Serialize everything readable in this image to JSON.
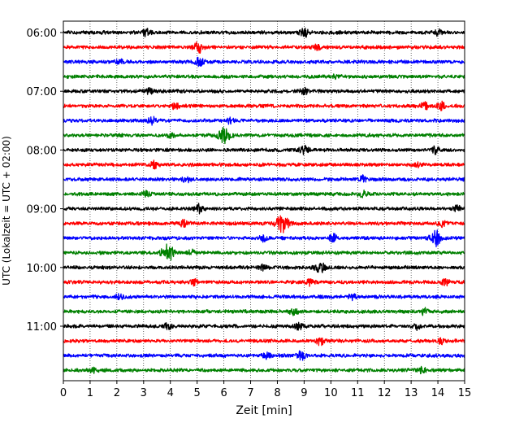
{
  "chart_data": {
    "type": "line",
    "subtype": "seismogram-helicorder",
    "xlabel": "Zeit  [min]",
    "ylabel": "UTC (Lokalzeit = UTC + 02:00)",
    "xlim": [
      0,
      15
    ],
    "x_ticks": [
      0,
      1,
      2,
      3,
      4,
      5,
      6,
      7,
      8,
      9,
      10,
      11,
      12,
      13,
      14,
      15
    ],
    "x_tick_labels": [
      "0",
      "1",
      "2",
      "3",
      "4",
      "5",
      "6",
      "7",
      "8",
      "9",
      "10",
      "11",
      "12",
      "13",
      "14",
      "15"
    ],
    "y_tick_labels": [
      "06:00",
      "07:00",
      "08:00",
      "09:00",
      "10:00",
      "11:00"
    ],
    "y_tick_rows": [
      0,
      4,
      8,
      12,
      16,
      20
    ],
    "grid": "vertical dotted lines at each minute",
    "trace_colors": [
      "#000000",
      "#ff0000",
      "#0000ff",
      "#008000"
    ],
    "traces": [
      {
        "start": "06:00",
        "color": "#000000",
        "events": [
          {
            "x": 3.1,
            "amp": 0.6
          },
          {
            "x": 9.0,
            "amp": 0.8
          },
          {
            "x": 14.0,
            "amp": 0.5
          }
        ]
      },
      {
        "start": "06:15",
        "color": "#ff0000",
        "events": [
          {
            "x": 5.05,
            "amp": 0.9
          },
          {
            "x": 9.5,
            "amp": 0.4
          }
        ]
      },
      {
        "start": "06:30",
        "color": "#0000ff",
        "events": [
          {
            "x": 2.1,
            "amp": 0.5
          },
          {
            "x": 5.1,
            "amp": 0.7
          }
        ]
      },
      {
        "start": "06:45",
        "color": "#008000",
        "events": [
          {
            "x": 10.2,
            "amp": 0.4
          }
        ]
      },
      {
        "start": "07:00",
        "color": "#000000",
        "events": [
          {
            "x": 3.2,
            "amp": 0.5
          },
          {
            "x": 9.0,
            "amp": 0.6
          }
        ]
      },
      {
        "start": "07:15",
        "color": "#ff0000",
        "events": [
          {
            "x": 4.2,
            "amp": 0.5
          },
          {
            "x": 13.5,
            "amp": 0.6
          },
          {
            "x": 14.1,
            "amp": 0.7
          }
        ]
      },
      {
        "start": "07:30",
        "color": "#0000ff",
        "events": [
          {
            "x": 3.3,
            "amp": 0.6
          },
          {
            "x": 6.2,
            "amp": 0.4
          }
        ]
      },
      {
        "start": "07:45",
        "color": "#008000",
        "events": [
          {
            "x": 6.0,
            "amp": 1.4
          },
          {
            "x": 4.0,
            "amp": 0.4
          }
        ]
      },
      {
        "start": "08:00",
        "color": "#000000",
        "events": [
          {
            "x": 9.0,
            "amp": 0.7
          },
          {
            "x": 13.9,
            "amp": 0.6
          }
        ]
      },
      {
        "start": "08:15",
        "color": "#ff0000",
        "events": [
          {
            "x": 3.4,
            "amp": 0.6
          },
          {
            "x": 13.2,
            "amp": 0.4
          }
        ]
      },
      {
        "start": "08:30",
        "color": "#0000ff",
        "events": [
          {
            "x": 4.6,
            "amp": 0.5
          },
          {
            "x": 11.2,
            "amp": 0.5
          }
        ]
      },
      {
        "start": "08:45",
        "color": "#008000",
        "events": [
          {
            "x": 3.1,
            "amp": 0.4
          },
          {
            "x": 11.2,
            "amp": 0.5
          }
        ]
      },
      {
        "start": "09:00",
        "color": "#000000",
        "events": [
          {
            "x": 5.1,
            "amp": 0.7
          },
          {
            "x": 14.7,
            "amp": 0.5
          }
        ]
      },
      {
        "start": "09:15",
        "color": "#ff0000",
        "events": [
          {
            "x": 8.2,
            "amp": 1.5
          },
          {
            "x": 14.2,
            "amp": 0.5
          },
          {
            "x": 4.5,
            "amp": 0.5
          }
        ]
      },
      {
        "start": "09:30",
        "color": "#0000ff",
        "events": [
          {
            "x": 13.9,
            "amp": 1.3
          },
          {
            "x": 10.1,
            "amp": 0.6
          },
          {
            "x": 7.5,
            "amp": 0.5
          }
        ]
      },
      {
        "start": "09:45",
        "color": "#008000",
        "events": [
          {
            "x": 3.9,
            "amp": 1.4
          },
          {
            "x": 4.8,
            "amp": 0.5
          }
        ]
      },
      {
        "start": "10:00",
        "color": "#000000",
        "events": [
          {
            "x": 9.6,
            "amp": 0.9
          },
          {
            "x": 7.5,
            "amp": 0.5
          }
        ]
      },
      {
        "start": "10:15",
        "color": "#ff0000",
        "events": [
          {
            "x": 4.9,
            "amp": 0.5
          },
          {
            "x": 9.2,
            "amp": 0.5
          },
          {
            "x": 14.3,
            "amp": 0.5
          }
        ]
      },
      {
        "start": "10:30",
        "color": "#0000ff",
        "events": [
          {
            "x": 10.8,
            "amp": 0.5
          },
          {
            "x": 2.1,
            "amp": 0.4
          }
        ]
      },
      {
        "start": "10:45",
        "color": "#008000",
        "events": [
          {
            "x": 8.6,
            "amp": 0.6
          },
          {
            "x": 13.5,
            "amp": 0.5
          }
        ]
      },
      {
        "start": "11:00",
        "color": "#000000",
        "events": [
          {
            "x": 3.9,
            "amp": 0.5
          },
          {
            "x": 8.8,
            "amp": 0.6
          },
          {
            "x": 13.2,
            "amp": 0.5
          }
        ]
      },
      {
        "start": "11:15",
        "color": "#ff0000",
        "events": [
          {
            "x": 9.6,
            "amp": 0.6
          },
          {
            "x": 14.1,
            "amp": 0.5
          }
        ]
      },
      {
        "start": "11:30",
        "color": "#0000ff",
        "events": [
          {
            "x": 8.9,
            "amp": 0.7
          },
          {
            "x": 7.6,
            "amp": 0.5
          }
        ]
      },
      {
        "start": "11:45",
        "color": "#008000",
        "events": [
          {
            "x": 1.1,
            "amp": 0.4
          },
          {
            "x": 13.4,
            "amp": 0.5
          }
        ]
      }
    ]
  }
}
